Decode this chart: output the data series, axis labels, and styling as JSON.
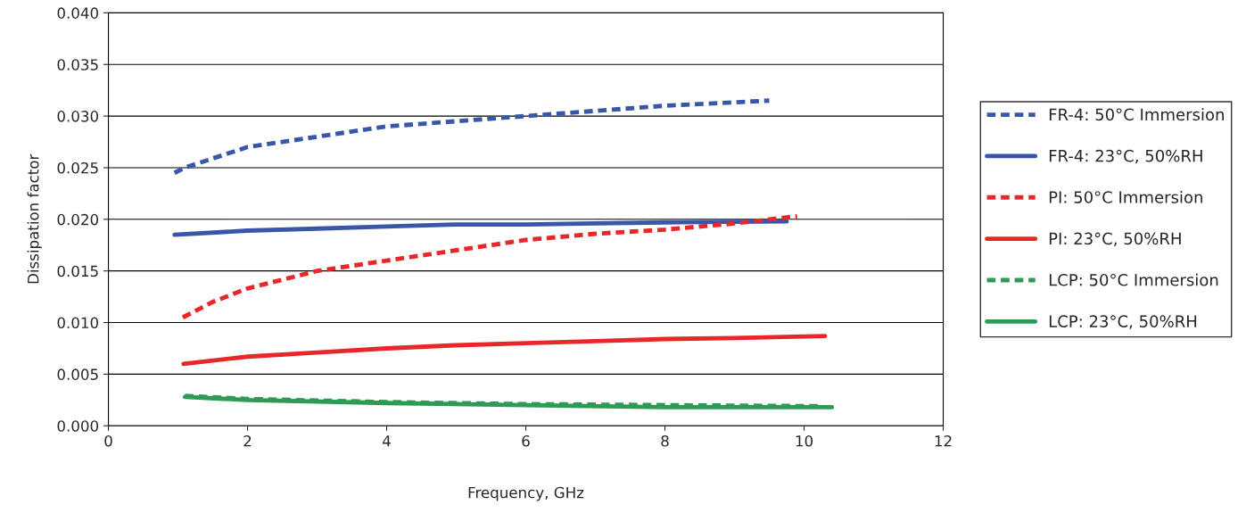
{
  "chart_data": {
    "type": "line",
    "xlabel": "Frequency, GHz",
    "ylabel": "Dissipation factor",
    "xlim": [
      0,
      12
    ],
    "xticks": [
      0,
      2,
      4,
      6,
      8,
      10,
      12
    ],
    "ylim": [
      0,
      0.04
    ],
    "yticks": [
      {
        "value": 0,
        "label": "0.000"
      },
      {
        "value": 0.005,
        "label": "0.005"
      },
      {
        "value": 0.01,
        "label": "0.010"
      },
      {
        "value": 0.015,
        "label": "0.015"
      },
      {
        "value": 0.02,
        "label": "0.020"
      },
      {
        "value": 0.025,
        "label": "0.025"
      },
      {
        "value": 0.03,
        "label": "0.030"
      },
      {
        "value": 0.035,
        "label": "0.035"
      },
      {
        "value": 0.04,
        "label": "0.040"
      }
    ],
    "grid": "y",
    "legend": "right",
    "marker": "none",
    "series": [
      {
        "name": "FR-4: 50°C Immersion",
        "color": "#3a56a8",
        "line_style": "dashed",
        "x": [
          0.95,
          1.1,
          2,
          3,
          4,
          5,
          6,
          7,
          8,
          9.5
        ],
        "values": [
          0.0245,
          0.025,
          0.027,
          0.028,
          0.029,
          0.0295,
          0.03,
          0.0305,
          0.031,
          0.0315
        ]
      },
      {
        "name": "FR-4: 23°C, 50%RH",
        "color": "#3a56a8",
        "line_style": "solid",
        "x": [
          0.95,
          2,
          3,
          4,
          5,
          6,
          7,
          8,
          9.75
        ],
        "values": [
          0.0185,
          0.0189,
          0.0191,
          0.0193,
          0.0195,
          0.0195,
          0.0196,
          0.0197,
          0.0198
        ]
      },
      {
        "name": "PI: 50°C Immersion",
        "color": "#e8272a",
        "line_style": "dashed",
        "x": [
          1.07,
          1.5,
          2,
          3,
          4,
          5,
          6,
          7,
          8,
          9,
          9.9
        ],
        "values": [
          0.0105,
          0.012,
          0.0133,
          0.015,
          0.016,
          0.017,
          0.018,
          0.0186,
          0.019,
          0.0196,
          0.0203
        ]
      },
      {
        "name": "PI: 23°C, 50%RH",
        "color": "#e8272a",
        "line_style": "solid",
        "x": [
          1.08,
          2,
          3,
          4,
          5,
          6,
          7,
          8,
          9,
          10.3
        ],
        "values": [
          0.006,
          0.0067,
          0.0071,
          0.0075,
          0.0078,
          0.008,
          0.0082,
          0.0084,
          0.0085,
          0.0087
        ]
      },
      {
        "name": "LCP: 50°C Immersion",
        "color": "#2e9a55",
        "line_style": "dashed",
        "x": [
          1.1,
          2,
          4,
          6,
          8,
          10.2
        ],
        "values": [
          0.0029,
          0.0026,
          0.0023,
          0.0021,
          0.002,
          0.0019
        ]
      },
      {
        "name": "LCP: 23°C, 50%RH",
        "color": "#2e9a55",
        "line_style": "solid",
        "x": [
          1.1,
          2,
          4,
          6,
          8,
          10.4
        ],
        "values": [
          0.0028,
          0.0025,
          0.0022,
          0.002,
          0.0018,
          0.0018
        ]
      }
    ]
  }
}
